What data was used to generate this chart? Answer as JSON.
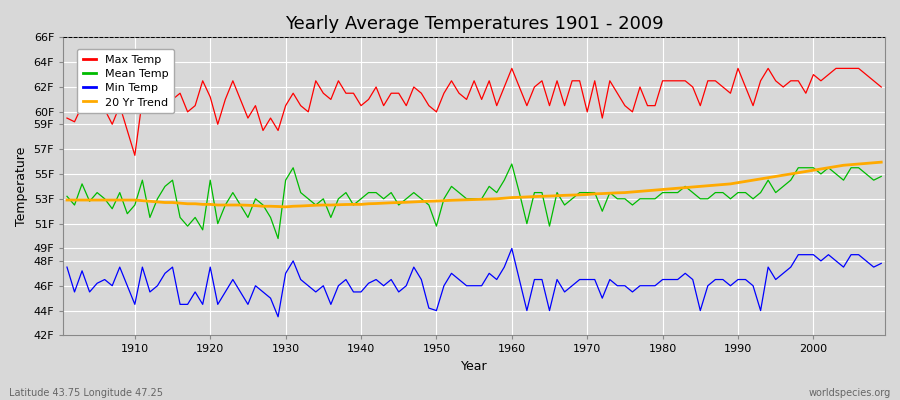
{
  "title": "Yearly Average Temperatures 1901 - 2009",
  "xlabel": "Year",
  "ylabel": "Temperature",
  "lat_lon_label": "Latitude 43.75 Longitude 47.25",
  "source_label": "worldspecies.org",
  "years": [
    1901,
    1902,
    1903,
    1904,
    1905,
    1906,
    1907,
    1908,
    1909,
    1910,
    1911,
    1912,
    1913,
    1914,
    1915,
    1916,
    1917,
    1918,
    1919,
    1920,
    1921,
    1922,
    1923,
    1924,
    1925,
    1926,
    1927,
    1928,
    1929,
    1930,
    1931,
    1932,
    1933,
    1934,
    1935,
    1936,
    1937,
    1938,
    1939,
    1940,
    1941,
    1942,
    1943,
    1944,
    1945,
    1946,
    1947,
    1948,
    1949,
    1950,
    1951,
    1952,
    1953,
    1954,
    1955,
    1956,
    1957,
    1958,
    1959,
    1960,
    1961,
    1962,
    1963,
    1964,
    1965,
    1966,
    1967,
    1968,
    1969,
    1970,
    1971,
    1972,
    1973,
    1974,
    1975,
    1976,
    1977,
    1978,
    1979,
    1980,
    1981,
    1982,
    1983,
    1984,
    1985,
    1986,
    1987,
    1988,
    1989,
    1990,
    1991,
    1992,
    1993,
    1994,
    1995,
    1996,
    1997,
    1998,
    1999,
    2000,
    2001,
    2002,
    2003,
    2004,
    2005,
    2006,
    2007,
    2008,
    2009
  ],
  "max_temp": [
    59.5,
    59.2,
    60.5,
    60.0,
    61.5,
    60.2,
    59.0,
    60.5,
    58.5,
    56.5,
    61.0,
    61.8,
    60.0,
    61.5,
    61.0,
    61.5,
    60.0,
    60.5,
    62.5,
    61.2,
    59.0,
    61.0,
    62.5,
    61.0,
    59.5,
    60.5,
    58.5,
    59.5,
    58.5,
    60.5,
    61.5,
    60.5,
    60.0,
    62.5,
    61.5,
    61.0,
    62.5,
    61.5,
    61.5,
    60.5,
    61.0,
    62.0,
    60.5,
    61.5,
    61.5,
    60.5,
    62.0,
    61.5,
    60.5,
    60.0,
    61.5,
    62.5,
    61.5,
    61.0,
    62.5,
    61.0,
    62.5,
    60.5,
    62.0,
    63.5,
    62.0,
    60.5,
    62.0,
    62.5,
    60.5,
    62.5,
    60.5,
    62.5,
    62.5,
    60.0,
    62.5,
    59.5,
    62.5,
    61.5,
    60.5,
    60.0,
    62.0,
    60.5,
    60.5,
    62.5,
    62.5,
    62.5,
    62.5,
    62.0,
    60.5,
    62.5,
    62.5,
    62.0,
    61.5,
    63.5,
    62.0,
    60.5,
    62.5,
    63.5,
    62.5,
    62.0,
    62.5,
    62.5,
    61.5,
    63.0,
    62.5,
    63.0,
    63.5,
    63.5,
    63.5,
    63.5,
    63.0,
    62.5,
    62.0
  ],
  "mean_temp": [
    53.2,
    52.5,
    54.2,
    52.8,
    53.5,
    53.0,
    52.2,
    53.5,
    51.8,
    52.5,
    54.5,
    51.5,
    53.0,
    54.0,
    54.5,
    51.5,
    50.8,
    51.5,
    50.5,
    54.5,
    51.0,
    52.5,
    53.5,
    52.5,
    51.5,
    53.0,
    52.5,
    51.5,
    49.8,
    54.5,
    55.5,
    53.5,
    53.0,
    52.5,
    53.0,
    51.5,
    53.0,
    53.5,
    52.5,
    53.0,
    53.5,
    53.5,
    53.0,
    53.5,
    52.5,
    53.0,
    53.5,
    53.0,
    52.5,
    50.8,
    53.0,
    54.0,
    53.5,
    53.0,
    53.0,
    53.0,
    54.0,
    53.5,
    54.5,
    55.8,
    53.5,
    51.0,
    53.5,
    53.5,
    50.8,
    53.5,
    52.5,
    53.0,
    53.5,
    53.5,
    53.5,
    52.0,
    53.5,
    53.0,
    53.0,
    52.5,
    53.0,
    53.0,
    53.0,
    53.5,
    53.5,
    53.5,
    54.0,
    53.5,
    53.0,
    53.0,
    53.5,
    53.5,
    53.0,
    53.5,
    53.5,
    53.0,
    53.5,
    54.5,
    53.5,
    54.0,
    54.5,
    55.5,
    55.5,
    55.5,
    55.0,
    55.5,
    55.0,
    54.5,
    55.5,
    55.5,
    55.0,
    54.5,
    54.8
  ],
  "min_temp": [
    47.5,
    45.5,
    47.2,
    45.5,
    46.2,
    46.5,
    46.0,
    47.5,
    46.0,
    44.5,
    47.5,
    45.5,
    46.0,
    47.0,
    47.5,
    44.5,
    44.5,
    45.5,
    44.5,
    47.5,
    44.5,
    45.5,
    46.5,
    45.5,
    44.5,
    46.0,
    45.5,
    45.0,
    43.5,
    47.0,
    48.0,
    46.5,
    46.0,
    45.5,
    46.0,
    44.5,
    46.0,
    46.5,
    45.5,
    45.5,
    46.2,
    46.5,
    46.0,
    46.5,
    45.5,
    46.0,
    47.5,
    46.5,
    44.2,
    44.0,
    46.0,
    47.0,
    46.5,
    46.0,
    46.0,
    46.0,
    47.0,
    46.5,
    47.5,
    49.0,
    46.5,
    44.0,
    46.5,
    46.5,
    44.0,
    46.5,
    45.5,
    46.0,
    46.5,
    46.5,
    46.5,
    45.0,
    46.5,
    46.0,
    46.0,
    45.5,
    46.0,
    46.0,
    46.0,
    46.5,
    46.5,
    46.5,
    47.0,
    46.5,
    44.0,
    46.0,
    46.5,
    46.5,
    46.0,
    46.5,
    46.5,
    46.0,
    44.0,
    47.5,
    46.5,
    47.0,
    47.5,
    48.5,
    48.5,
    48.5,
    48.0,
    48.5,
    48.0,
    47.5,
    48.5,
    48.5,
    48.0,
    47.5,
    47.8
  ],
  "trend_data": [
    52.9,
    52.9,
    52.9,
    52.9,
    52.9,
    52.9,
    52.9,
    52.9,
    52.9,
    52.9,
    52.85,
    52.8,
    52.75,
    52.7,
    52.7,
    52.65,
    52.6,
    52.6,
    52.55,
    52.55,
    52.5,
    52.5,
    52.5,
    52.5,
    52.48,
    52.45,
    52.4,
    52.4,
    52.38,
    52.35,
    52.4,
    52.42,
    52.45,
    52.48,
    52.5,
    52.5,
    52.52,
    52.54,
    52.55,
    52.55,
    52.6,
    52.62,
    52.65,
    52.68,
    52.7,
    52.72,
    52.75,
    52.78,
    52.8,
    52.82,
    52.85,
    52.88,
    52.9,
    52.92,
    52.94,
    52.96,
    52.98,
    53.0,
    53.05,
    53.1,
    53.12,
    53.15,
    53.18,
    53.2,
    53.22,
    53.25,
    53.28,
    53.3,
    53.32,
    53.35,
    53.4,
    53.42,
    53.45,
    53.48,
    53.5,
    53.55,
    53.6,
    53.65,
    53.7,
    53.75,
    53.8,
    53.85,
    53.9,
    53.95,
    54.0,
    54.05,
    54.1,
    54.15,
    54.2,
    54.3,
    54.4,
    54.5,
    54.6,
    54.7,
    54.8,
    54.9,
    55.0,
    55.1,
    55.2,
    55.3,
    55.4,
    55.5,
    55.6,
    55.7,
    55.75,
    55.8,
    55.85,
    55.9,
    55.95
  ],
  "max_color": "#ff0000",
  "mean_color": "#00bb00",
  "min_color": "#0000ff",
  "trend_color": "#ffaa00",
  "bg_color": "#d8d8d8",
  "plot_bg_color": "#d8d8d8",
  "grid_color": "#ffffff",
  "ylim": [
    42,
    66
  ],
  "ytick_vals": [
    42,
    44,
    46,
    48,
    49,
    51,
    53,
    55,
    57,
    59,
    60,
    62,
    64,
    66
  ],
  "ytick_labels": [
    "42F",
    "44F",
    "46F",
    "48F",
    "49F",
    "51F",
    "53F",
    "55F",
    "57F",
    "59F",
    "60F",
    "62F",
    "64F",
    "66F"
  ],
  "xticks": [
    1910,
    1920,
    1930,
    1940,
    1950,
    1960,
    1970,
    1980,
    1990,
    2000
  ],
  "dashed_line_y": 66,
  "title_fontsize": 13,
  "axis_fontsize": 8,
  "label_fontsize": 9
}
